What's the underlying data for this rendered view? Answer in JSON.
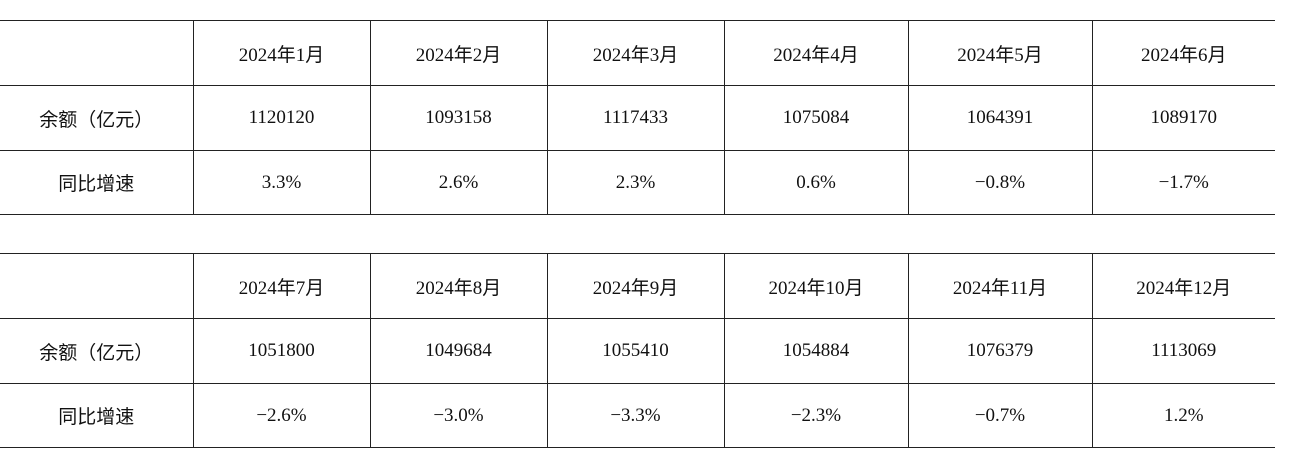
{
  "tables": [
    {
      "header": [
        "2024年1月",
        "2024年2月",
        "2024年3月",
        "2024年4月",
        "2024年5月",
        "2024年6月"
      ],
      "rows": [
        [
          "余额（亿元）",
          "1120120",
          "1093158",
          "1117433",
          "1075084",
          "1064391",
          "1089170"
        ],
        [
          "同比增速",
          "3.3%",
          "2.6%",
          "2.3%",
          "0.6%",
          "−0.8%",
          "−1.7%"
        ]
      ]
    },
    {
      "header": [
        "2024年7月",
        "2024年8月",
        "2024年9月",
        "2024年10月",
        "2024年11月",
        "2024年12月"
      ],
      "rows": [
        [
          "余额（亿元）",
          "1051800",
          "1049684",
          "1055410",
          "1054884",
          "1076379",
          "1113069"
        ],
        [
          "同比增速",
          "−2.6%",
          "−3.0%",
          "−3.3%",
          "−2.3%",
          "−0.7%",
          "1.2%"
        ]
      ]
    }
  ]
}
